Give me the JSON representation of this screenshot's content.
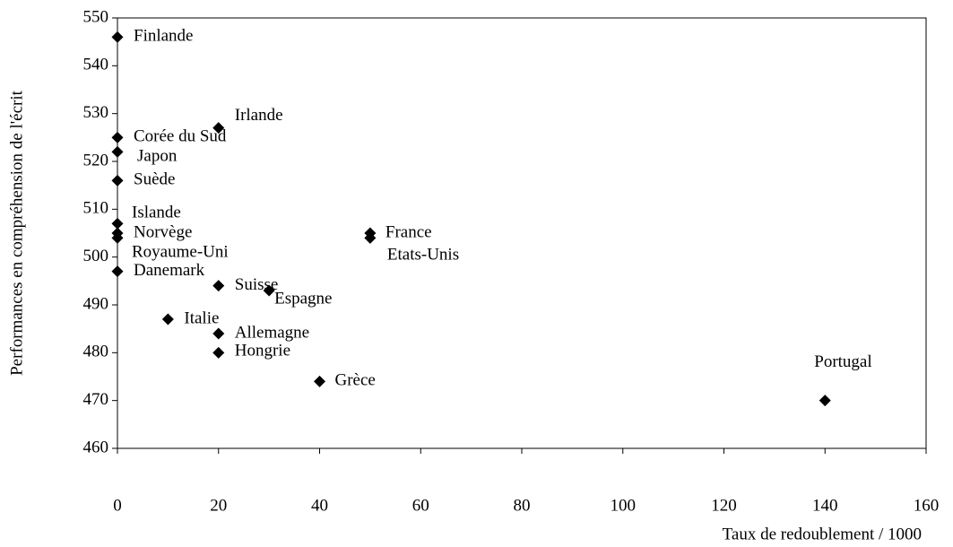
{
  "chart_data": {
    "type": "scatter",
    "xlabel": "Taux de redoublement / 1000",
    "ylabel": "Performances en compréhension de l'écrit",
    "labels": [
      "Finlande",
      "Irlande",
      "Corée du Sud",
      "Japon",
      "Suède",
      "Islande",
      "Norvège",
      "Royaume-Uni",
      "Danemark",
      "France",
      "Etats-Unis",
      "Suisse",
      "Espagne",
      "Italie",
      "Allemagne",
      "Hongrie",
      "Grèce",
      "Portugal"
    ],
    "x": [
      0,
      20,
      0,
      0,
      0,
      0,
      0,
      0,
      0,
      50,
      50,
      20,
      30,
      10,
      20,
      20,
      40,
      140
    ],
    "values": [
      546,
      527,
      525,
      522,
      516,
      507,
      505,
      504,
      497,
      505,
      504,
      494,
      493,
      487,
      484,
      480,
      474,
      470
    ],
    "color": "#000000",
    "xlim": [
      0,
      160
    ],
    "xticks": [
      0,
      20,
      40,
      60,
      80,
      100,
      120,
      140,
      160
    ],
    "ylim": [
      460,
      550
    ],
    "yticks": [
      460,
      470,
      480,
      490,
      500,
      510,
      520,
      530,
      540,
      550
    ],
    "grid": false
  }
}
